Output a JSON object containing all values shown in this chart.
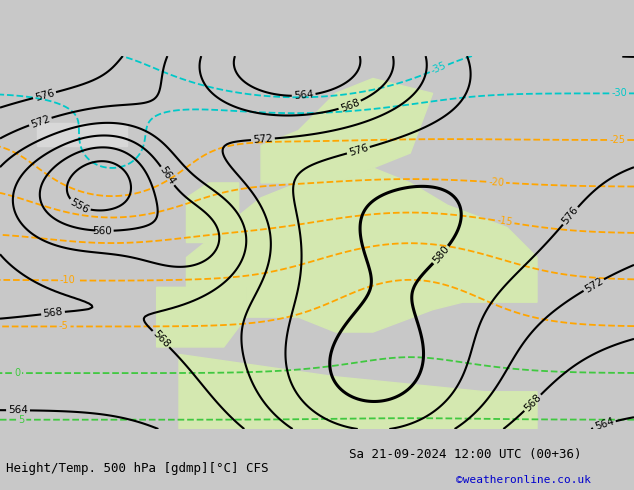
{
  "title_left": "Height/Temp. 500 hPa [gdmp][°C] CFS",
  "title_right": "Sa 21-09-2024 12:00 UTC (00+36)",
  "credit": "©weatheronline.co.uk",
  "bg_map_color": "#c8c8c8",
  "bg_land_color": "#d4e8b0",
  "bg_sea_color": "#d8d8d8",
  "contour_height_color": "#000000",
  "contour_temp_warm_color": "#ffa500",
  "contour_temp_cold_color": "#ff2020",
  "contour_temp_cyan_color": "#00c8c8",
  "contour_temp_green_color": "#40c840",
  "label_color": "#000000",
  "bottom_label_color": "#000000",
  "credit_color": "#0000cc",
  "figsize": [
    6.34,
    4.9
  ],
  "dpi": 100,
  "font_size_bottom": 9,
  "font_size_credit": 8
}
